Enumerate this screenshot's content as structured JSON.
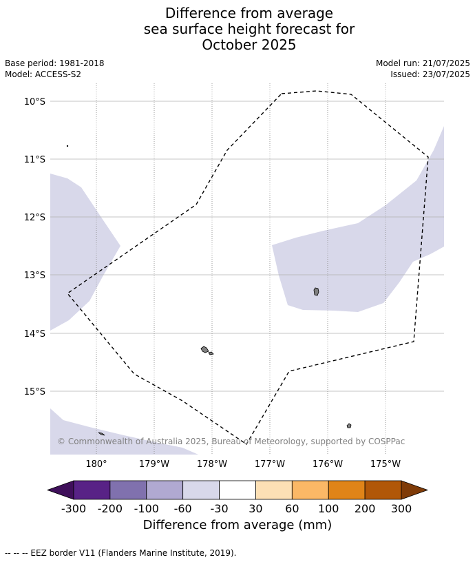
{
  "title": {
    "line1": "Difference from average",
    "line2": "sea surface height forecast for",
    "line3": "October 2025"
  },
  "meta": {
    "base_period": "Base period: 1981-2018",
    "model": "Model: ACCESS-S2",
    "model_run": "Model run: 21/07/2025",
    "issued": "Issued: 23/07/2025"
  },
  "map": {
    "lon_labels": [
      "180°",
      "179°W",
      "178°W",
      "177°W",
      "176°W",
      "175°W"
    ],
    "lat_labels": [
      "10°S",
      "11°S",
      "12°S",
      "13°S",
      "14°S",
      "15°S"
    ],
    "copyright": "© Commonwealth of Australia 2025, Bureau of Meteorology, supported by COSPPac",
    "land_color": "#808080",
    "anomaly_fill_color": "#d8d8ea",
    "eez_style": "black dashed line"
  },
  "colorbar": {
    "tick_labels": [
      "-300",
      "-200",
      "-100",
      "-60",
      "-30",
      "30",
      "60",
      "100",
      "200",
      "300"
    ],
    "colors": [
      "#3f0f5a",
      "#582286",
      "#8071ae",
      "#b0a9d1",
      "#d8d8ea",
      "#ffffff",
      "#fde0b5",
      "#fbb866",
      "#e08418",
      "#b15708",
      "#7f3b08"
    ],
    "label": "Difference from average (mm)"
  },
  "footer": "--  --  -- EEZ border V11 (Flanders Marine Institute, 2019)."
}
